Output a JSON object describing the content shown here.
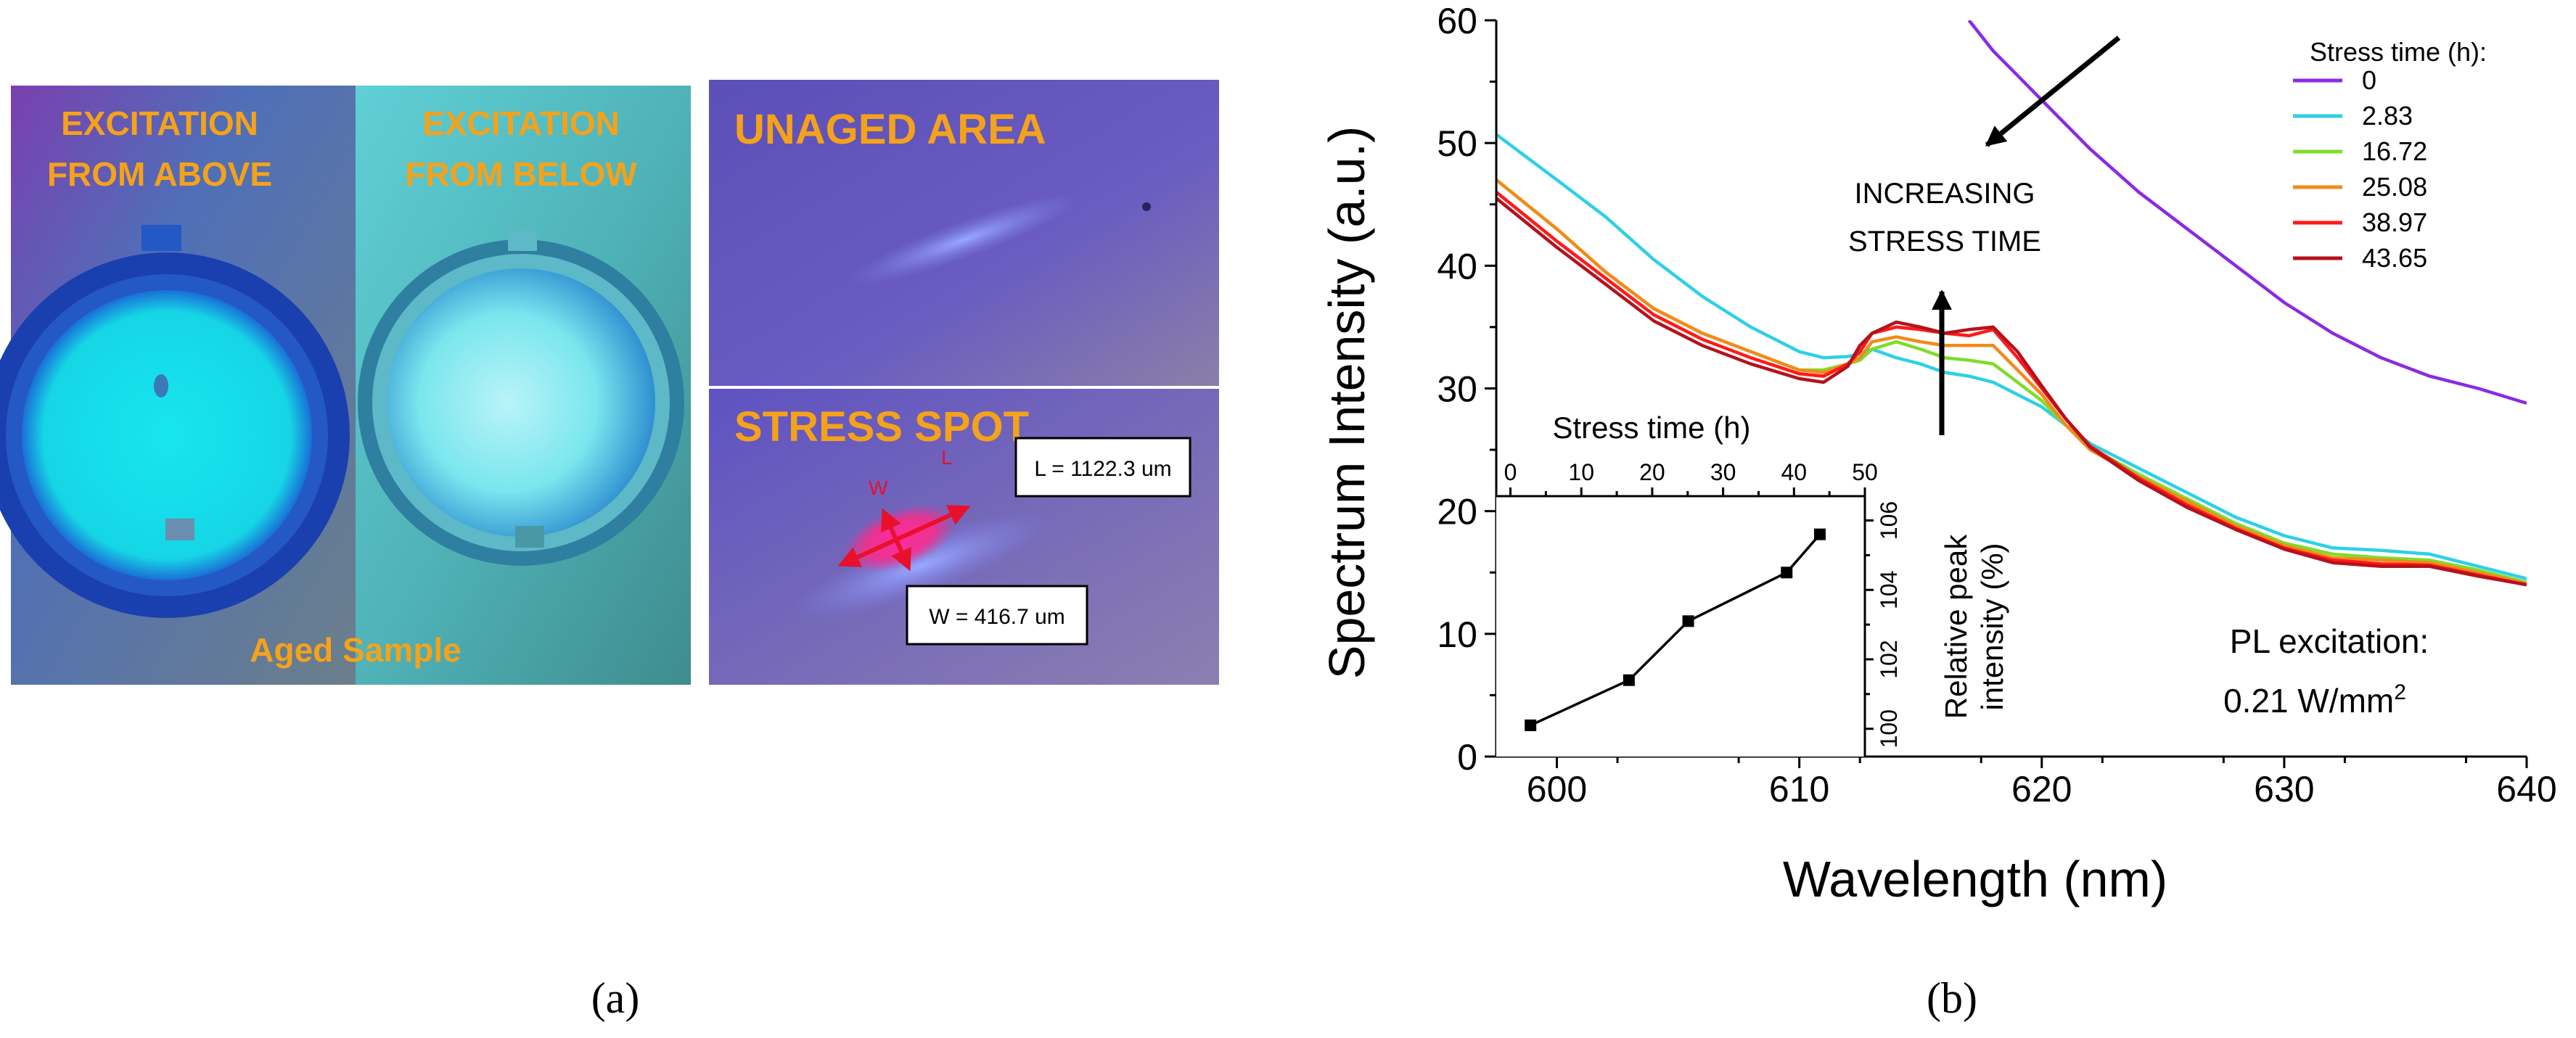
{
  "panel_a": {
    "label": "(a)",
    "photo1_text": [
      "EXCITATION",
      "FROM ABOVE"
    ],
    "photo2_text": [
      "EXCITATION",
      "FROM BELOW"
    ],
    "aged_sample": "Aged Sample",
    "unaged_area": "UNAGED AREA",
    "stress_spot": "STRESS SPOT",
    "length_box": "L = 1122.3 um",
    "width_box": "W = 416.7 um",
    "w_marker": "W",
    "l_marker": "L"
  },
  "panel_b": {
    "label": "(b)",
    "annotation": [
      "INCREASING",
      "STRESS TIME"
    ],
    "excitation_label": "PL excitation:",
    "excitation_value": "0.21 W/mm",
    "excitation_sup": "2"
  },
  "colors": {
    "s0": "#8a2be2",
    "s1": "#2ed0e6",
    "s2": "#7fdc2a",
    "s3": "#f28a1b",
    "s4": "#ff1a1a",
    "s5": "#b5121b",
    "inset_line": "#000000",
    "text_orange": "#f5a21b"
  },
  "chart_data": [
    {
      "type": "line",
      "title": "",
      "xlabel": "Wavelength (nm)",
      "ylabel": "Spectrum Intensity (a.u.)",
      "xlim": [
        597.5,
        640
      ],
      "ylim": [
        0,
        60
      ],
      "xticks": [
        600,
        610,
        620,
        630,
        640
      ],
      "yticks": [
        0,
        10,
        20,
        30,
        40,
        50,
        60
      ],
      "grid": false,
      "legend_title": "Stress time (h):",
      "legend_position": "top-right",
      "x": [
        597.5,
        600,
        602,
        604,
        606,
        608,
        610,
        611,
        612,
        612.5,
        613,
        614,
        615,
        616,
        617,
        618,
        619,
        620,
        621,
        622,
        624,
        626,
        628,
        630,
        632,
        634,
        636,
        638,
        640
      ],
      "series": [
        {
          "name": "0",
          "values": [
            null,
            null,
            null,
            null,
            null,
            null,
            null,
            null,
            null,
            null,
            null,
            null,
            null,
            null,
            60,
            57.5,
            55.5,
            53.5,
            51.5,
            49.5,
            46,
            43,
            40,
            37,
            34.5,
            32.5,
            31,
            30,
            28.8
          ]
        },
        {
          "name": "2.83",
          "values": [
            50.7,
            47,
            44,
            40.5,
            37.5,
            35,
            33,
            32.5,
            32.6,
            32.8,
            33.2,
            32.5,
            32,
            31.3,
            31,
            30.5,
            29.5,
            28.5,
            27,
            25.5,
            23.5,
            21.5,
            19.5,
            18,
            17,
            16.8,
            16.5,
            15.5,
            14.5
          ]
        },
        {
          "name": "16.72",
          "values": [
            47,
            43,
            39.5,
            36.5,
            34.5,
            33,
            31.5,
            31.5,
            32,
            32.3,
            33.2,
            33.8,
            33.2,
            32.5,
            32.3,
            32,
            30.5,
            29,
            27,
            25.2,
            23,
            21,
            19,
            17.4,
            16.5,
            16.2,
            16,
            15.2,
            14.2
          ]
        },
        {
          "name": "25.08",
          "values": [
            47,
            43,
            39.5,
            36.5,
            34.5,
            33,
            31.5,
            31.3,
            32,
            32.5,
            33.8,
            34.2,
            33.8,
            33.5,
            33.5,
            33.5,
            31.5,
            29.5,
            27,
            25,
            22.8,
            20.8,
            18.8,
            17.2,
            16.2,
            16,
            15.8,
            15,
            14.1
          ]
        },
        {
          "name": "38.97",
          "values": [
            46,
            42,
            39,
            36,
            34,
            32.5,
            31.2,
            31,
            32,
            33,
            34.5,
            35,
            34.8,
            34.5,
            34.3,
            34.8,
            32.5,
            30,
            27.5,
            25.3,
            22.7,
            20.5,
            18.6,
            17,
            16,
            15.7,
            15.6,
            14.8,
            14
          ]
        },
        {
          "name": "43.65",
          "values": [
            45.5,
            41.5,
            38.5,
            35.5,
            33.5,
            32,
            30.8,
            30.5,
            31.8,
            33.5,
            34.5,
            35.4,
            35,
            34.5,
            34.8,
            35,
            33,
            30.2,
            27.5,
            25.2,
            22.5,
            20.3,
            18.5,
            16.9,
            15.8,
            15.5,
            15.5,
            14.7,
            14
          ]
        }
      ],
      "annotations": [
        "INCREASING STRESS TIME",
        "PL excitation: 0.21 W/mm²"
      ]
    },
    {
      "type": "line",
      "title": "",
      "xlabel": "Stress time (h)",
      "ylabel": "Relative peak intensity (%)",
      "xlim": [
        -2,
        50
      ],
      "ylim": [
        99.2,
        106.7
      ],
      "xticks": [
        0,
        10,
        20,
        30,
        40,
        50
      ],
      "yticks": [
        100,
        102,
        104,
        106
      ],
      "x": [
        2.83,
        16.72,
        25.08,
        38.97,
        43.65
      ],
      "values": [
        100.1,
        101.4,
        103.1,
        104.5,
        105.6
      ]
    }
  ]
}
